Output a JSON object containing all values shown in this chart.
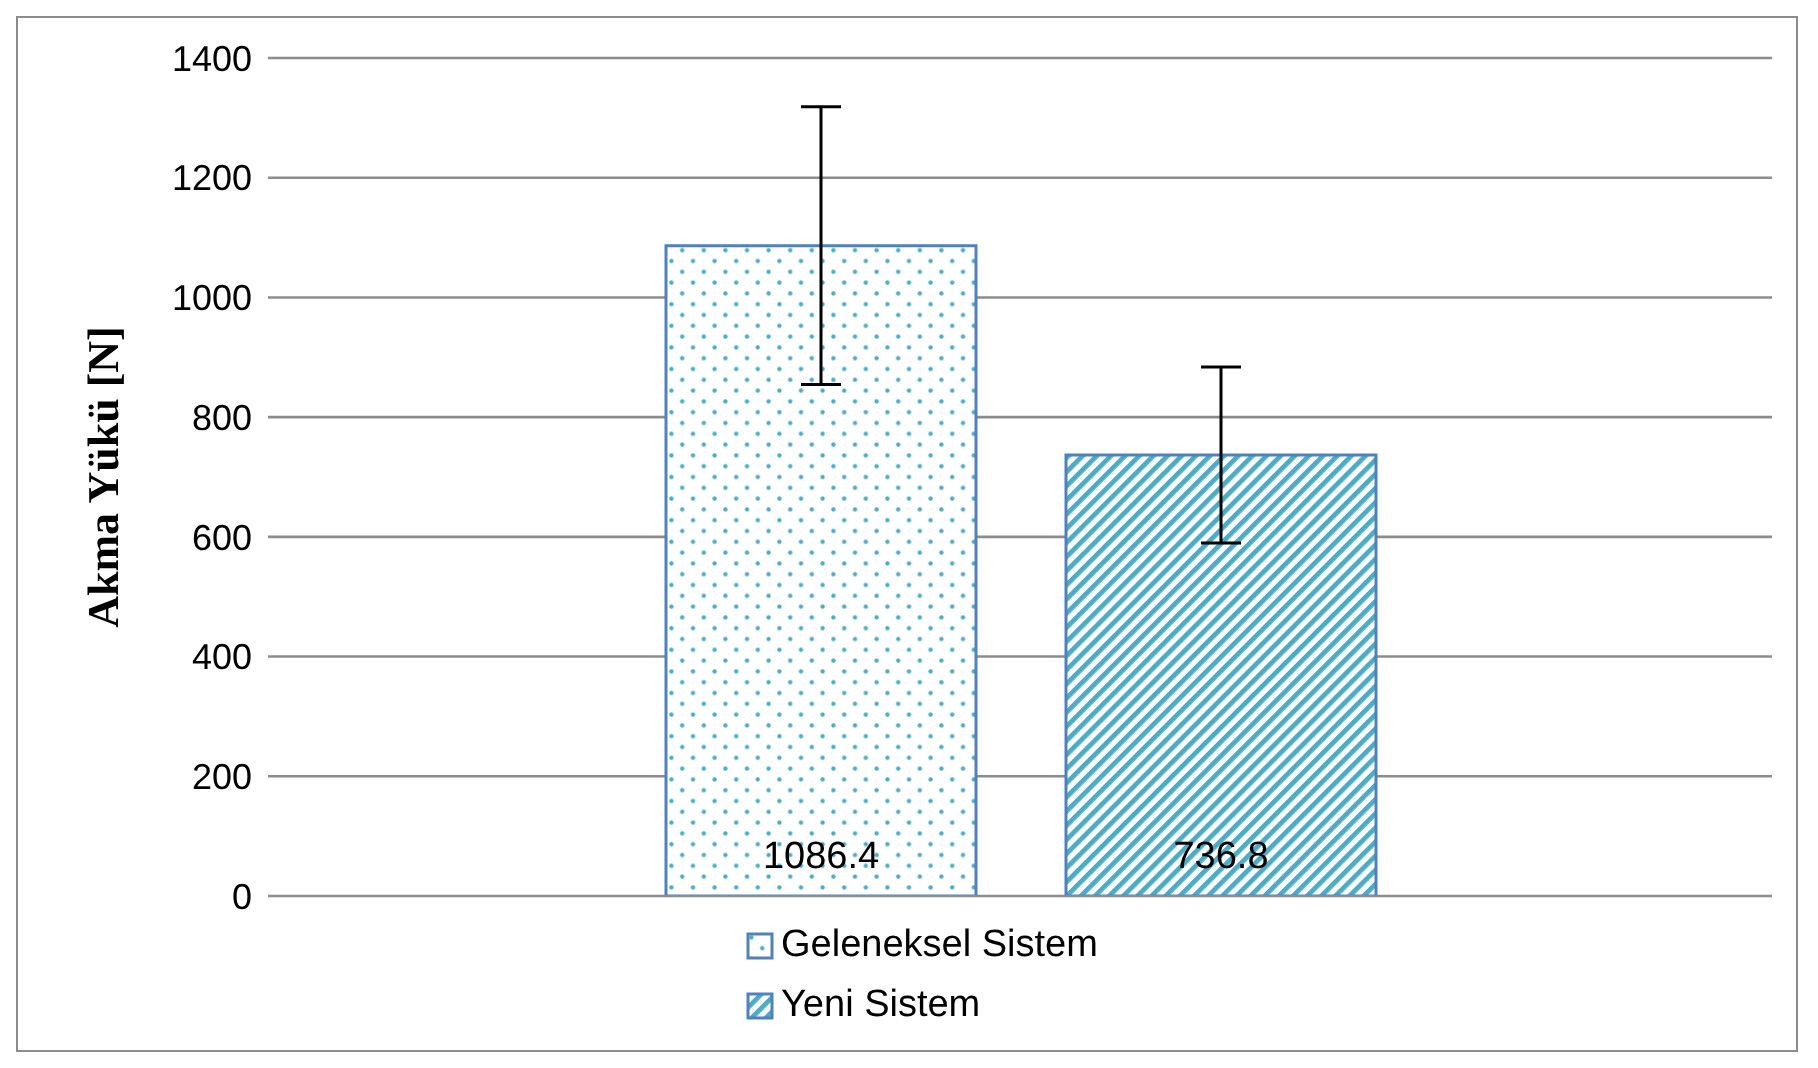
{
  "chart_data": {
    "type": "bar",
    "ylabel": "Akma Yükü [N]",
    "categories": [
      null
    ],
    "series": [
      {
        "name": "Geleneksel Sistem",
        "color": "#4f81bd",
        "values": [
          1086.4
        ],
        "errors": [
          232
        ]
      },
      {
        "name": "Yeni Sistem",
        "color": "#4f81bd",
        "values": [
          736.8
        ],
        "errors": [
          147
        ]
      }
    ],
    "ylim": [
      0,
      1400
    ],
    "yticks": [
      0,
      200,
      400,
      600,
      800,
      1000,
      1200,
      1400
    ],
    "grid": "y",
    "legend": "bottom",
    "data_labels": true
  }
}
